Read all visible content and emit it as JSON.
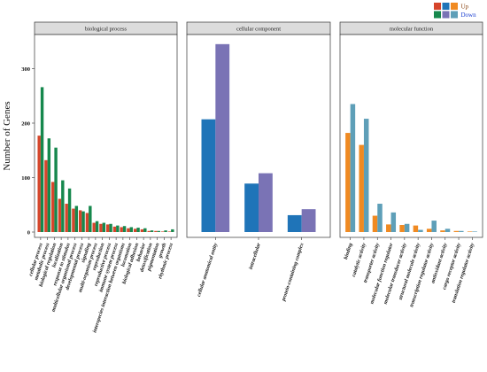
{
  "colors": {
    "up": [
      "#d6452b",
      "#1f74b8",
      "#f08a22"
    ],
    "down": [
      "#16884d",
      "#7a73b5",
      "#5e9fb8"
    ],
    "legend_up_text": "#8b4513",
    "legend_down_text": "#1a3fd1",
    "strip_bg": "#dcdcdc",
    "panel_border": "#333333"
  },
  "chart_data": {
    "type": "bar",
    "ylabel": "Number of Genes",
    "ylim": [
      0,
      370
    ],
    "yticks": [
      0,
      100,
      200,
      300
    ],
    "legend": {
      "placement": "top-right",
      "entries": [
        {
          "label": "Up",
          "series": "up"
        },
        {
          "label": "Down",
          "series": "down"
        }
      ]
    },
    "panels": [
      {
        "title": "biological process",
        "categories": [
          "cellular process",
          "metabolic process",
          "biological regulation",
          "localization",
          "response to stimulus",
          "multicellular organismal process",
          "developmental process",
          "signaling",
          "multi-organism process",
          "reproduction",
          "reproductive process",
          "immune system process",
          "interspecies interaction between organisms",
          "locomotion",
          "biological adhesion",
          "behavior",
          "detoxification",
          "pigmentation",
          "growth",
          "rhythmic process"
        ],
        "series": [
          {
            "name": "Up",
            "values": [
              177,
              132,
              92,
              61,
              52,
              43,
              40,
              35,
              17,
              15,
              14,
              10,
              9,
              7,
              6,
              5,
              2,
              2,
              1,
              1
            ]
          },
          {
            "name": "Down",
            "values": [
              266,
              172,
              155,
              95,
              80,
              48,
              38,
              48,
              20,
              17,
              15,
              12,
              11,
              9,
              8,
              7,
              3,
              2,
              3,
              5
            ]
          }
        ]
      },
      {
        "title": "cellular component",
        "categories": [
          "cellular anatomical entity",
          "intracellular",
          "protein-containing complex"
        ],
        "series": [
          {
            "name": "Up",
            "values": [
              207,
              89,
              31
            ]
          },
          {
            "name": "Down",
            "values": [
              345,
              108,
              42
            ]
          }
        ]
      },
      {
        "title": "molecular function",
        "categories": [
          "binding",
          "catalytic activity",
          "transporter activity",
          "molecular function regulator",
          "molecular transducer activity",
          "structural molecule activity",
          "transcription regulator activity",
          "antioxidant activity",
          "cargo receptor activity",
          "translation regulator activity"
        ],
        "series": [
          {
            "name": "Up",
            "values": [
              182,
              160,
              30,
              14,
              13,
              12,
              6,
              3,
              2,
              1
            ]
          },
          {
            "name": "Down",
            "values": [
              235,
              208,
              52,
              36,
              15,
              4,
              21,
              6,
              2,
              1
            ]
          }
        ]
      }
    ]
  }
}
